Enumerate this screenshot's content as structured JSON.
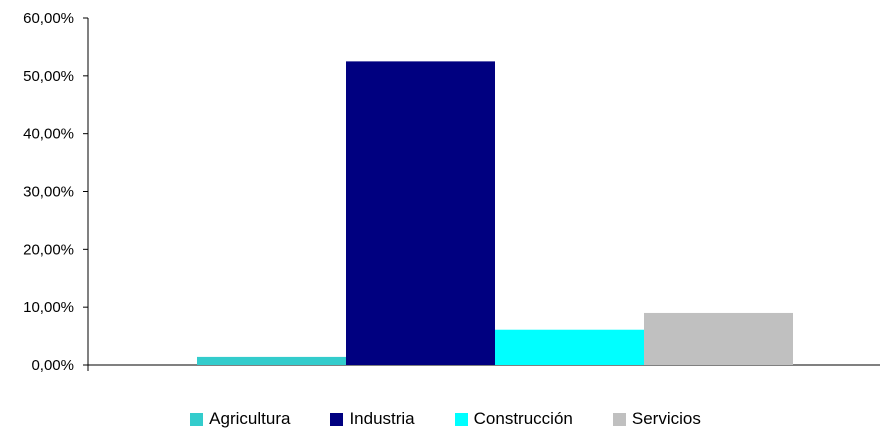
{
  "chart_data": {
    "type": "bar",
    "categories": [
      "Agricultura",
      "Industria",
      "Construcción",
      "Servicios"
    ],
    "values": [
      1.4,
      52.5,
      6.1,
      9.0
    ],
    "colors": [
      "#33CCCC",
      "#000080",
      "#00FFFF",
      "#C0C0C0"
    ],
    "y_ticks": [
      "0,00%",
      "10,00%",
      "20,00%",
      "30,00%",
      "40,00%",
      "50,00%",
      "60,00%"
    ],
    "ylim": [
      0,
      60
    ],
    "grid": false,
    "legend_position": "bottom",
    "title": "",
    "xlabel": "",
    "ylabel": ""
  }
}
